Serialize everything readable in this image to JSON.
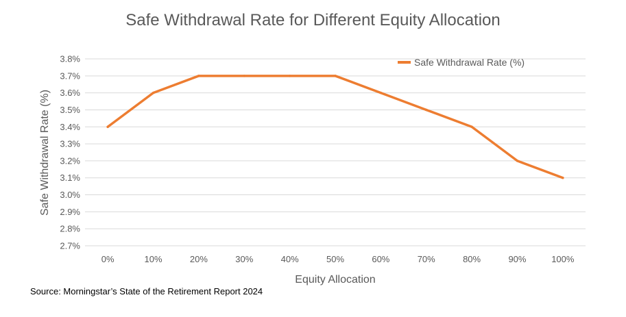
{
  "chart_data": {
    "type": "line",
    "title": "Safe Withdrawal Rate for Different Equity Allocation",
    "xlabel": "Equity Allocation",
    "ylabel": "Safe Withdrawal Rate (%)",
    "categories": [
      "0%",
      "10%",
      "20%",
      "30%",
      "40%",
      "50%",
      "60%",
      "70%",
      "80%",
      "90%",
      "100%"
    ],
    "series": [
      {
        "name": "Safe Withdrawal Rate (%)",
        "values": [
          3.4,
          3.6,
          3.7,
          3.7,
          3.7,
          3.7,
          3.6,
          3.5,
          3.4,
          3.2,
          3.1
        ]
      }
    ],
    "ylim": [
      2.7,
      3.8
    ],
    "y_ticks": [
      "2.7%",
      "2.8%",
      "2.9%",
      "3.0%",
      "3.1%",
      "3.2%",
      "3.3%",
      "3.4%",
      "3.5%",
      "3.6%",
      "3.7%",
      "3.8%"
    ],
    "grid": true,
    "legend": "top-right",
    "colors": {
      "series": "#ED7D31",
      "grid": "#D9D9D9",
      "text": "#595959"
    }
  },
  "source": "Source: Morningstar’s State of the Retirement Report 2024"
}
